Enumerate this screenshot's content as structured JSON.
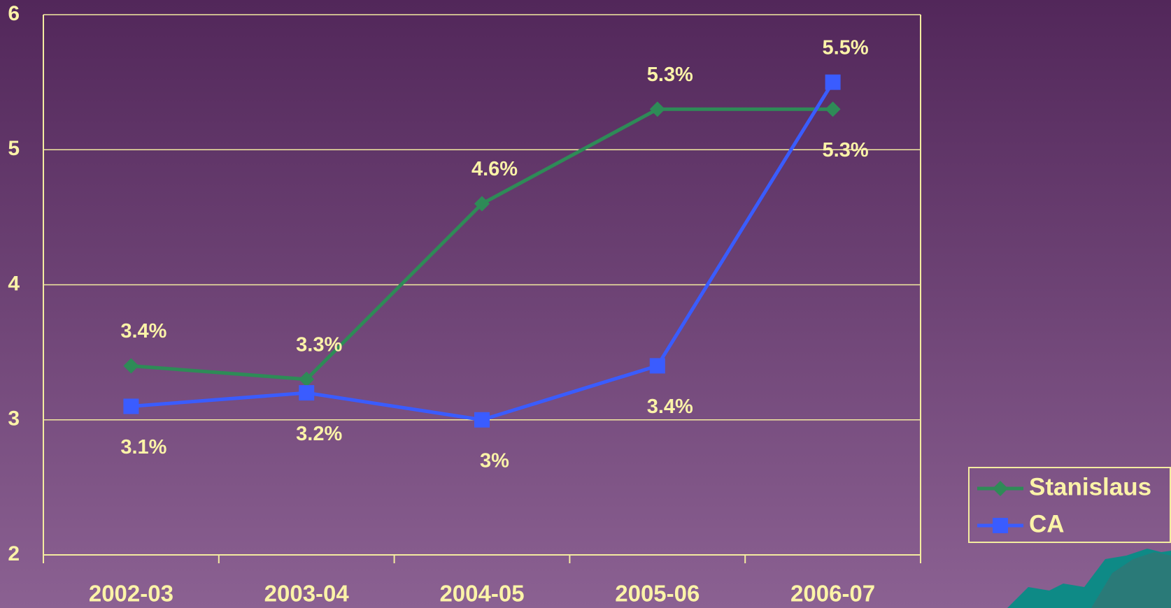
{
  "chart_data": {
    "type": "line",
    "categories": [
      "2002-03",
      "2003-04",
      "2004-05",
      "2005-06",
      "2006-07"
    ],
    "series": [
      {
        "name": "Stanislaus",
        "color": "#2e8b57",
        "marker": "diamond",
        "values": [
          3.4,
          3.3,
          4.6,
          5.3,
          5.3
        ],
        "value_labels": [
          "3.4%",
          "3.3%",
          "4.6%",
          "5.3%",
          "5.3%"
        ]
      },
      {
        "name": "CA",
        "color": "#3a5cff",
        "marker": "square",
        "values": [
          3.1,
          3.2,
          3.0,
          3.4,
          5.5
        ],
        "value_labels": [
          "3.1%",
          "3.2%",
          "3%",
          "3.4%",
          "5.5%"
        ]
      }
    ],
    "ylim": [
      2,
      6
    ],
    "yticks": [
      2,
      3,
      4,
      5,
      6
    ],
    "grid": true,
    "legend": "right"
  }
}
